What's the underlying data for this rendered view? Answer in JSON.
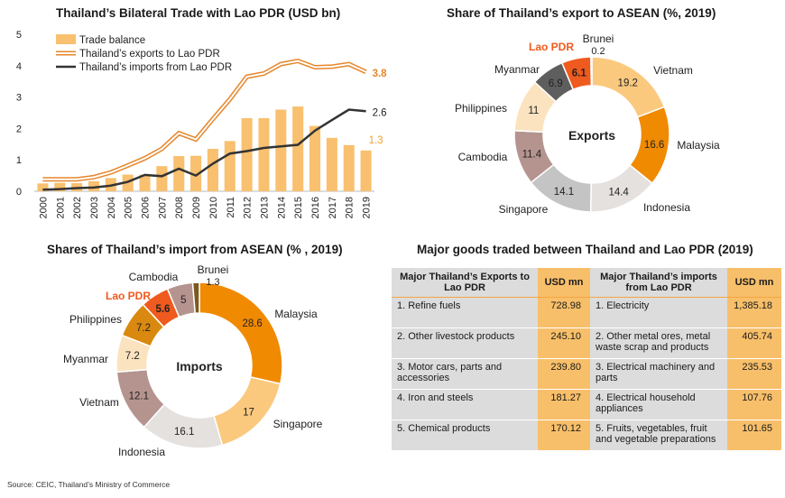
{
  "line_chart": {
    "title": "Thailand’s Bilateral Trade with Lao PDR (USD bn)",
    "legend": [
      "Trade balance",
      "Thailand’s exports to Lao PDR",
      "Thailand’s imports from Lao PDR"
    ],
    "end_labels": [
      "3.8",
      "2.6",
      "1.3"
    ]
  },
  "export_donut": {
    "title": "Share of Thailand’s export to ASEAN  (%, 2019)",
    "center_label": "Exports"
  },
  "import_donut": {
    "title": "Shares of Thailand’s import from ASEAN (% , 2019)",
    "center_label": "Imports"
  },
  "goods_table": {
    "title": "Major goods traded between Thailand and Lao PDR (2019)",
    "headers": [
      "Major Thailand’s Exports to Lao PDR",
      "USD mn",
      "Major Thailand’s imports from Lao PDR",
      "USD mn"
    ],
    "rows": [
      [
        "1. Refine fuels",
        "728.98",
        "1. Electricity",
        "1,385.18"
      ],
      [
        "2. Other livestock products",
        "245.10",
        "2. Other metal ores, metal waste scrap and products",
        "405.74"
      ],
      [
        "3. Motor cars, parts and accessories",
        "239.80",
        "3. Electrical machinery and parts",
        "235.53"
      ],
      [
        "4. Iron and steels",
        "181.27",
        "4. Electrical household appliances",
        "107.76"
      ],
      [
        "5. Chemical products",
        "170.12",
        "5. Fruits, vegetables, fruit and vegetable preparations",
        "101.65"
      ]
    ]
  },
  "source": "Source: CEIC, Thailand’s Ministry of Commerce",
  "colors": {
    "orange": "#f4a640",
    "dark_orange": "#f08a00",
    "lao": "#ef5a1e",
    "dark": "#3a3a3a",
    "light_orange": "#fbc97e",
    "cream": "#fbe3bf",
    "mauve": "#b5948f",
    "gray": "#c4c4c4",
    "light_gray": "#e4e1df",
    "brown": "#7b5a1e"
  },
  "chart_data": [
    {
      "type": "bar+line",
      "title": "Thailand’s Bilateral Trade with Lao PDR (USD bn)",
      "categories": [
        "2000",
        "2001",
        "2002",
        "2003",
        "2004",
        "2005",
        "2006",
        "2007",
        "2008",
        "2009",
        "2010",
        "2011",
        "2012",
        "2013",
        "2014",
        "2015",
        "2016",
        "2017",
        "2018",
        "2019"
      ],
      "ylim": [
        0,
        5
      ],
      "yticks": [
        0,
        1,
        2,
        3,
        4,
        5
      ],
      "series": [
        {
          "name": "Trade balance",
          "kind": "bar",
          "values": [
            0.25,
            0.27,
            0.26,
            0.32,
            0.42,
            0.53,
            0.53,
            0.8,
            1.12,
            1.13,
            1.35,
            1.6,
            2.33,
            2.33,
            2.6,
            2.7,
            2.08,
            1.7,
            1.47,
            1.3
          ]
        },
        {
          "name": "Thailand’s exports to Lao PDR",
          "kind": "line",
          "values": [
            0.38,
            0.38,
            0.38,
            0.45,
            0.6,
            0.82,
            1.05,
            1.35,
            1.85,
            1.65,
            2.3,
            2.93,
            3.65,
            3.75,
            4.05,
            4.15,
            3.95,
            3.97,
            4.05,
            3.8
          ]
        },
        {
          "name": "Thailand’s imports from Lao PDR",
          "kind": "line",
          "values": [
            0.05,
            0.07,
            0.1,
            0.12,
            0.18,
            0.3,
            0.52,
            0.48,
            0.72,
            0.5,
            0.88,
            1.2,
            1.28,
            1.38,
            1.43,
            1.48,
            1.93,
            2.27,
            2.6,
            2.55
          ]
        }
      ],
      "data_labels": [
        "3.8",
        "2.6",
        "1.3"
      ]
    },
    {
      "type": "pie",
      "title": "Share of Thailand’s export to ASEAN  (%, 2019)",
      "labels": [
        "Vietnam",
        "Malaysia",
        "Indonesia",
        "Singapore",
        "Cambodia",
        "Philippines",
        "Myanmar",
        "Lao PDR",
        "Brunei"
      ],
      "values": [
        19.2,
        16.6,
        14.4,
        14.1,
        11.4,
        11.0,
        6.9,
        6.1,
        0.2
      ]
    },
    {
      "type": "pie",
      "title": "Shares of Thailand’s import from ASEAN (% , 2019)",
      "labels": [
        "Malaysia",
        "Singapore",
        "Indonesia",
        "Vietnam",
        "Myanmar",
        "Philippines",
        "Lao PDR",
        "Cambodia",
        "Brunei"
      ],
      "values": [
        28.6,
        17.0,
        16.1,
        12.1,
        7.2,
        7.2,
        5.6,
        5.0,
        1.3
      ]
    }
  ]
}
